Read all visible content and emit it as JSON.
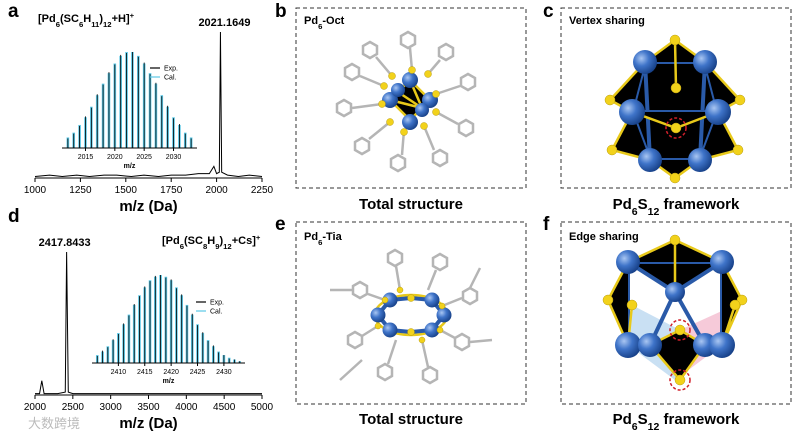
{
  "panel_labels": [
    "a",
    "b",
    "c",
    "d",
    "e",
    "f"
  ],
  "chart_data": [
    {
      "type": "line",
      "title_parts": [
        "[Pd",
        "6",
        "(SC",
        "6",
        "H",
        "11",
        ")",
        "12",
        "+H]",
        "+"
      ],
      "xlabel": "m/z (Da)",
      "color": "#000000",
      "x": [
        1000,
        1080,
        1150,
        1230,
        1300,
        1380,
        1450,
        1530,
        1600,
        1680,
        1750,
        1830,
        1900,
        1960,
        1985,
        2000,
        2015,
        2021.1649,
        2028,
        2060,
        2120,
        2180,
        2250
      ],
      "values": [
        1,
        2,
        1,
        2,
        1,
        2,
        2,
        1,
        2,
        1,
        2,
        2,
        3,
        3,
        8,
        3,
        4,
        100,
        4,
        2,
        1,
        2,
        1
      ],
      "xlim": [
        1000,
        2250
      ],
      "xticks": [
        1000,
        1250,
        1500,
        1750,
        2000,
        2250
      ],
      "ylim": [
        0,
        100
      ],
      "inset": {
        "type": "bar",
        "xlabel": "m/z",
        "x": [
          2012,
          2013,
          2014,
          2015,
          2016,
          2017,
          2018,
          2019,
          2020,
          2021,
          2022,
          2023,
          2024,
          2025,
          2026,
          2027,
          2028,
          2029,
          2030,
          2031,
          2032,
          2033
        ],
        "series": [
          {
            "name": "Exp.",
            "color": "#000000",
            "values": [
              10,
              15,
              23,
              33,
              42,
              56,
              66,
              79,
              87,
              97,
              99,
              100,
              95,
              89,
              77,
              68,
              54,
              44,
              31,
              25,
              15,
              10
            ]
          },
          {
            "name": "Cal.",
            "color": "#5bc8e6",
            "values": [
              11,
              16,
              24,
              32,
              43,
              55,
              67,
              78,
              88,
              96,
              100,
              100,
              96,
              88,
              78,
              67,
              55,
              43,
              32,
              24,
              16,
              11
            ]
          }
        ],
        "xlim": [
          2011,
          2034
        ],
        "xticks": [
          2015,
          2020,
          2025,
          2030
        ],
        "ylim": [
          0,
          100
        ]
      }
    },
    {
      "type": "line",
      "title_parts": [
        "[Pd",
        "6",
        "(SC",
        "8",
        "H",
        "9",
        ")",
        "12",
        "+Cs]",
        "+"
      ],
      "xlabel": "m/z (Da)",
      "color": "#000000",
      "x": [
        2000,
        2060,
        2090,
        2120,
        2200,
        2300,
        2400,
        2417.8433,
        2440,
        2500,
        2700,
        2900,
        3100,
        3300,
        3500,
        3700,
        3900,
        4100,
        4300,
        4500,
        4700,
        5000
      ],
      "values": [
        1,
        1,
        10,
        1,
        1,
        1,
        2,
        100,
        2,
        1,
        1,
        1,
        1,
        1,
        1,
        1,
        1,
        1,
        1,
        1,
        1,
        1
      ],
      "xlim": [
        2000,
        5000
      ],
      "xticks": [
        2000,
        2500,
        3000,
        3500,
        4000,
        4500,
        5000
      ],
      "ylim": [
        0,
        100
      ],
      "inset": {
        "type": "bar",
        "xlabel": "m/z",
        "x": [
          2406,
          2407,
          2408,
          2409,
          2410,
          2411,
          2412,
          2413,
          2414,
          2415,
          2416,
          2417,
          2418,
          2419,
          2420,
          2421,
          2422,
          2423,
          2424,
          2425,
          2426,
          2427,
          2428,
          2429,
          2430,
          2431,
          2432,
          2433
        ],
        "series": [
          {
            "name": "Exp.",
            "color": "#000000",
            "values": [
              8,
              14,
              18,
              27,
              33,
              45,
              54,
              67,
              76,
              87,
              93,
              99,
              100,
              97,
              95,
              85,
              78,
              65,
              56,
              43,
              35,
              25,
              20,
              12,
              9,
              5,
              4,
              2
            ]
          },
          {
            "name": "Cal.",
            "color": "#5bc8e6",
            "values": [
              9,
              13,
              19,
              26,
              34,
              44,
              55,
              66,
              77,
              86,
              94,
              98,
              100,
              98,
              94,
              86,
              77,
              66,
              55,
              44,
              34,
              26,
              19,
              13,
              9,
              6,
              4,
              2
            ]
          }
        ],
        "xlim": [
          2405,
          2434
        ],
        "xticks": [
          2410,
          2415,
          2420,
          2425,
          2430
        ],
        "ylim": [
          0,
          100
        ]
      }
    }
  ],
  "structures": [
    {
      "name_parts": [
        "Pd",
        "6",
        "-Oct"
      ],
      "caption": "Total structure"
    },
    {
      "name": "Vertex sharing",
      "caption_parts": [
        "Pd",
        "6",
        "S",
        "12",
        " framework"
      ]
    },
    {
      "name_parts": [
        "Pd",
        "6",
        "-Tia"
      ],
      "caption": "Total structure"
    },
    {
      "name": "Edge sharing",
      "caption_parts": [
        "Pd",
        "6",
        "S",
        "12",
        " framework"
      ]
    }
  ],
  "watermark": "大数跨境"
}
